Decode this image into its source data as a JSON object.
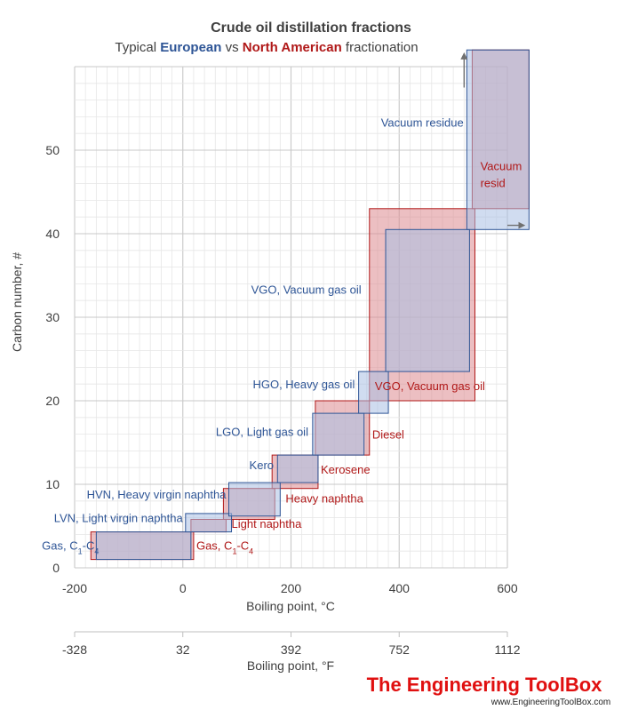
{
  "chart_data": {
    "type": "range-boxes",
    "title": "Crude oil distillation fractions",
    "subtitle": {
      "prefix": "Typical ",
      "european": "European",
      "middle": " vs ",
      "north_american": "North American",
      "suffix": " fractionation"
    },
    "xlabel": "Boiling point, °C",
    "ylabel": "Carbon number, #",
    "xlim": [
      -200,
      600
    ],
    "ylim": [
      0,
      60
    ],
    "x_ticks": [
      -200,
      0,
      200,
      400,
      600
    ],
    "y_ticks": [
      0,
      10,
      20,
      30,
      40,
      50
    ],
    "secondary_axis": {
      "xlabel": "Boiling point, °F",
      "ticks": [
        {
          "celsius": -200,
          "label": "-328"
        },
        {
          "celsius": 0,
          "label": "32"
        },
        {
          "celsius": 200,
          "label": "392"
        },
        {
          "celsius": 400,
          "label": "752"
        },
        {
          "celsius": 600,
          "label": "1112"
        }
      ]
    },
    "series": [
      {
        "name": "European",
        "color": "#2e5596",
        "fill": "#a9bfe3",
        "fractions": [
          {
            "label": "Gas, C1-C4",
            "x0": -160,
            "x1": 15,
            "y0": 1,
            "y1": 4.3,
            "label_anchor": "end",
            "label_at": [
              -155,
              2.2
            ]
          },
          {
            "label": "LVN, Light virgin naphtha",
            "x0": 5,
            "x1": 90,
            "y0": 4.3,
            "y1": 6.5,
            "label_anchor": "end",
            "label_at": [
              0,
              5.5
            ]
          },
          {
            "label": "HVN, Heavy virgin naphtha",
            "x0": 85,
            "x1": 180,
            "y0": 6.2,
            "y1": 10.2,
            "label_anchor": "end",
            "label_at": [
              80,
              8.3
            ]
          },
          {
            "label": "Kero",
            "x0": 175,
            "x1": 250,
            "y0": 10.2,
            "y1": 13.5,
            "label_anchor": "end",
            "label_at": [
              168,
              11.8
            ]
          },
          {
            "label": "LGO, Light gas oil",
            "x0": 240,
            "x1": 335,
            "y0": 13.5,
            "y1": 18.5,
            "label_anchor": "end",
            "label_at": [
              232,
              15.8
            ]
          },
          {
            "label": "HGO, Heavy gas oil",
            "x0": 325,
            "x1": 380,
            "y0": 18.5,
            "y1": 23.5,
            "label_anchor": "end",
            "label_at": [
              318,
              21.5
            ]
          },
          {
            "label": "VGO, Vacuum gas oil",
            "x0": 375,
            "x1": 530,
            "y0": 23.5,
            "y1": 40.5,
            "label_anchor": "end",
            "label_at": [
              330,
              32.8
            ]
          },
          {
            "label": "Vacuum residue",
            "x0": 525,
            "x1": 640,
            "y0": 40.5,
            "y1": 62,
            "label_anchor": "end",
            "label_at": [
              519,
              52.8
            ]
          }
        ]
      },
      {
        "name": "North American",
        "color": "#b01818",
        "fill": "#dd8a8f",
        "fractions": [
          {
            "label": "Gas, C1-C4",
            "x0": -170,
            "x1": 20,
            "y0": 1,
            "y1": 4.3,
            "label_anchor": "start",
            "label_at": [
              25,
              2.2
            ]
          },
          {
            "label": "Light naphtha",
            "x0": 15,
            "x1": 80,
            "y0": 4.3,
            "y1": 5.8,
            "label_anchor": "start",
            "label_at": [
              90,
              4.8
            ]
          },
          {
            "label": "Heavy naphtha",
            "x0": 75,
            "x1": 170,
            "y0": 5.8,
            "y1": 9.5,
            "label_anchor": "start",
            "label_at": [
              190,
              7.8
            ]
          },
          {
            "label": "Kerosene",
            "x0": 165,
            "x1": 250,
            "y0": 9.5,
            "y1": 13.5,
            "label_anchor": "start",
            "label_at": [
              255,
              11.3
            ]
          },
          {
            "label": "Diesel",
            "x0": 245,
            "x1": 345,
            "y0": 13.5,
            "y1": 20,
            "label_anchor": "start",
            "label_at": [
              350,
              15.5
            ]
          },
          {
            "label": "VGO, Vacuum gas oil",
            "x0": 345,
            "x1": 540,
            "y0": 20,
            "y1": 43,
            "label_anchor": "start",
            "label_at": [
              355,
              21.3
            ]
          },
          {
            "label": "Vacuum resid",
            "x0": 535,
            "x1": 640,
            "y0": 43,
            "y1": 62,
            "label_anchor": "start",
            "label_at": [
              550,
              47.6
            ],
            "label_lines": [
              "Vacuum",
              "resid"
            ]
          }
        ]
      }
    ],
    "annotations": [
      "upward arrow at 520 °C",
      "rightward arrow at 41 C"
    ]
  },
  "branding": {
    "name": "The Engineering ToolBox",
    "url": "www.EngineeringToolBox.com"
  }
}
